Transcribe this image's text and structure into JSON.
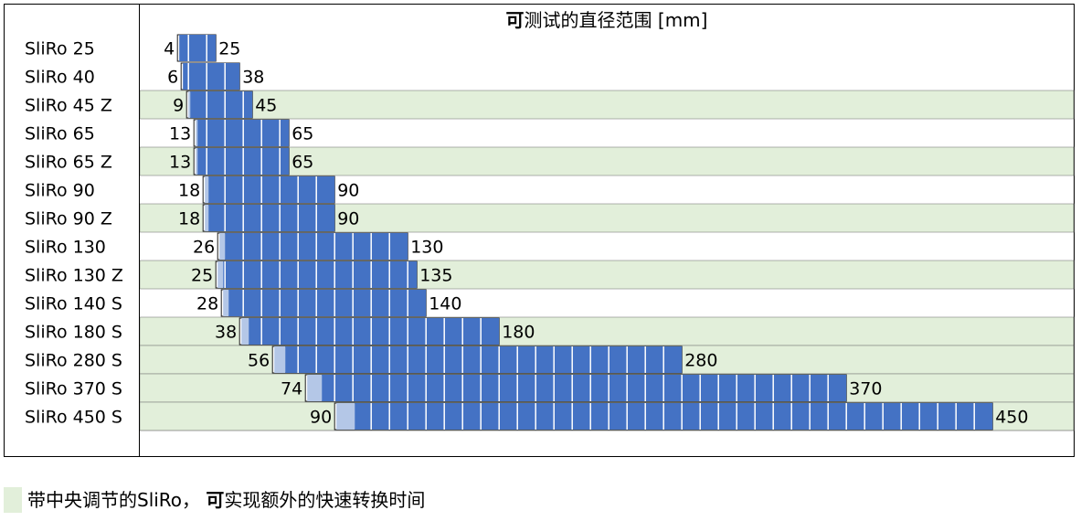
{
  "chart_data": {
    "type": "bar",
    "title_bold": "可",
    "title_rest": "测试的直径范围 [mm]",
    "xlabel": "",
    "ylabel": "",
    "grid": false,
    "categories": [
      "SliRo 25",
      "SliRo 40",
      "SliRo 45 Z",
      "SliRo 65",
      "SliRo 65 Z",
      "SliRo 90",
      "SliRo 90 Z",
      "SliRo 130",
      "SliRo 130 Z",
      "SliRo 140 S",
      "SliRo 180 S",
      "SliRo 280 S",
      "SliRo 370 S",
      "SliRo 450 S"
    ],
    "series": [
      {
        "values_min": [
          4,
          6,
          9,
          13,
          13,
          18,
          18,
          26,
          25,
          28,
          38,
          56,
          74,
          90
        ]
      },
      {
        "values_max": [
          25,
          38,
          45,
          65,
          65,
          90,
          90,
          130,
          135,
          140,
          180,
          280,
          370,
          450
        ]
      }
    ],
    "central_adjustment": [
      false,
      false,
      true,
      false,
      true,
      false,
      true,
      false,
      true,
      false,
      true,
      true,
      true,
      true
    ],
    "colors": {
      "bar": "#4472C4",
      "bar_light": "#B4C7E7",
      "highlight_row": "#E2EFDA",
      "segment_line": "#FFFFFF"
    },
    "legend_placement": "bottom-left"
  },
  "legend": {
    "text_before": "带中央调节的SliRo， ",
    "text_bold": "可",
    "text_after": "实现额外的快速转换时间"
  }
}
